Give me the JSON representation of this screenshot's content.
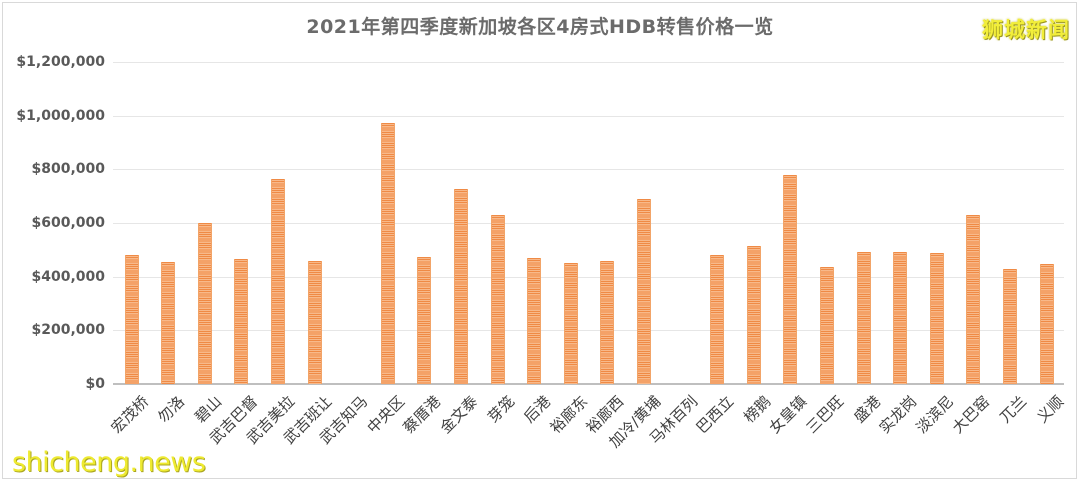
{
  "header": {
    "title": "2021年第四季度新加坡各区4房式HDB转售价格一览",
    "watermark_top": "狮城新闻",
    "watermark_bottom": "shicheng.news"
  },
  "colors": {
    "bar": "#ef8a45",
    "bar_stripe": "#f8b98a",
    "grid": "#e6e6e6",
    "title": "#6b6b6b",
    "watermark": "#f2ee3a"
  },
  "chart_data": {
    "type": "bar",
    "title": "2021年第四季度新加坡各区4房式HDB转售价格一览",
    "xlabel": "",
    "ylabel": "",
    "ylim": [
      0,
      1200000
    ],
    "yticks": [
      "$0",
      "$200,000",
      "$400,000",
      "$600,000",
      "$800,000",
      "$1,000,000",
      "$1,200,000"
    ],
    "grid": true,
    "legend": null,
    "categories": [
      "宏茂桥",
      "勿洛",
      "碧山",
      "武吉巴督",
      "武吉美拉",
      "武吉班让",
      "武吉知马",
      "中央区",
      "蔡厝港",
      "金文泰",
      "芽笼",
      "后港",
      "裕廊东",
      "裕廊西",
      "加冷/黄埔",
      "马林百列",
      "巴西立",
      "榜鹅",
      "女皇镇",
      "三巴旺",
      "盛港",
      "实龙岗",
      "淡滨尼",
      "大巴窑",
      "兀兰",
      "义顺"
    ],
    "values": [
      479000,
      454000,
      599000,
      467000,
      765000,
      459000,
      0,
      972000,
      472000,
      728000,
      629000,
      471000,
      450000,
      458000,
      690000,
      0,
      481000,
      514000,
      778000,
      437000,
      491000,
      491000,
      487000,
      630000,
      428000,
      447000
    ]
  }
}
